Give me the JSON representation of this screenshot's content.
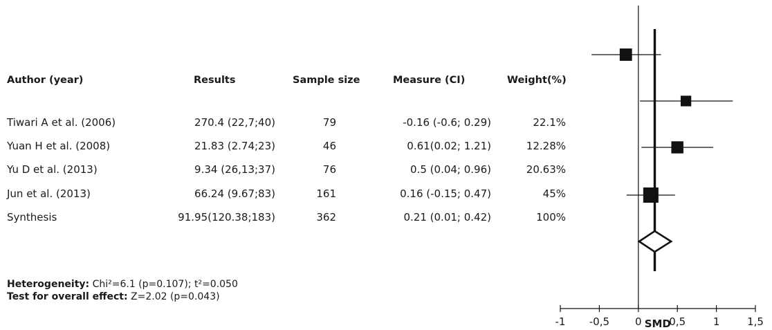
{
  "table": {
    "headers": {
      "author": "Author (year)",
      "results": "Results",
      "sample": "Sample size",
      "measure": "Measure (CI)",
      "weight": "Weight(%)"
    },
    "rows": [
      {
        "author": "Tiwari A et al. (2006)",
        "results": "270.4 (22,7;40)",
        "sample": "79",
        "measure": "-0.16 (-0.6; 0.29)",
        "weight": "22.1%"
      },
      {
        "author": "Yuan H et al. (2008)",
        "results": "21.83 (2.74;23)",
        "sample": "46",
        "measure": "0.61(0.02; 1.21)",
        "weight": "12.28%"
      },
      {
        "author": "Yu D et al. (2013)",
        "results": "9.34 (26,13;37)",
        "sample": "76",
        "measure": "0.5 (0.04; 0.96)",
        "weight": "20.63%"
      },
      {
        "author": "Jun et al. (2013)",
        "results": "66.24 (9.67;83)",
        "sample": "161",
        "measure": "0.16 (-0.15; 0.47)",
        "weight": "45%"
      },
      {
        "author": "Synthesis",
        "results": "91.95(120.38;183)",
        "sample": "362",
        "measure": "0.21 (0.01; 0.42)",
        "weight": "100%"
      }
    ]
  },
  "notes": {
    "heterogeneity_label": "Heterogeneity:",
    "heterogeneity_value": "Chi²=6.1 (p=0.107); t²=0.050",
    "overall_label": "Test for overall effect:",
    "overall_value": "Z=2.02 (p=0.043)"
  },
  "chart_data": {
    "type": "forest",
    "xlabel": "SMD",
    "xlim": [
      -1,
      1.5
    ],
    "ticks": [
      -1,
      -0.5,
      0,
      0.5,
      1,
      1.5
    ],
    "tick_labels": [
      "-1",
      "-0,5",
      "0",
      "0,5",
      "1",
      "1,5"
    ],
    "null_line": 0,
    "pooled_line": 0.21,
    "studies": [
      {
        "label": "Tiwari A et al. (2006)",
        "estimate": -0.16,
        "ci": [
          -0.6,
          0.29
        ],
        "weight": 22.1
      },
      {
        "label": "Yuan H et al. (2008)",
        "estimate": 0.61,
        "ci": [
          0.02,
          1.21
        ],
        "weight": 12.28
      },
      {
        "label": "Yu D et al. (2013)",
        "estimate": 0.5,
        "ci": [
          0.04,
          0.96
        ],
        "weight": 20.63
      },
      {
        "label": "Jun et al. (2013)",
        "estimate": 0.16,
        "ci": [
          -0.15,
          0.47
        ],
        "weight": 45
      }
    ],
    "pooled": {
      "label": "Synthesis",
      "estimate": 0.21,
      "ci": [
        0.01,
        0.42
      ]
    },
    "colors": {
      "ink": "#111111"
    }
  }
}
